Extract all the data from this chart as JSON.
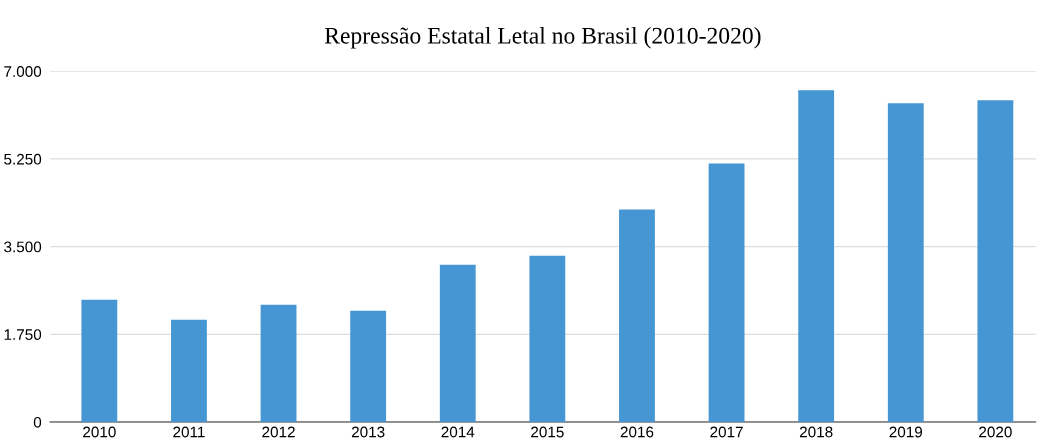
{
  "chart_data": {
    "type": "bar",
    "title": "Repressão Estatal Letal no Brasil (2010-2020)",
    "categories": [
      "2010",
      "2011",
      "2012",
      "2013",
      "2014",
      "2015",
      "2016",
      "2017",
      "2018",
      "2019",
      "2020"
    ],
    "values": [
      2440,
      2040,
      2340,
      2220,
      3140,
      3320,
      4240,
      5160,
      6620,
      6360,
      6420
    ],
    "color": "#4596d3",
    "ylim": [
      0,
      7000
    ],
    "yticks": [
      0,
      {
        "value": 1750,
        "label": "1.750"
      },
      {
        "value": 3500,
        "label": "3.500"
      },
      {
        "value": 5250,
        "label": "5.250"
      },
      {
        "value": 7000,
        "label": "7.000"
      }
    ],
    "grid": "y"
  }
}
